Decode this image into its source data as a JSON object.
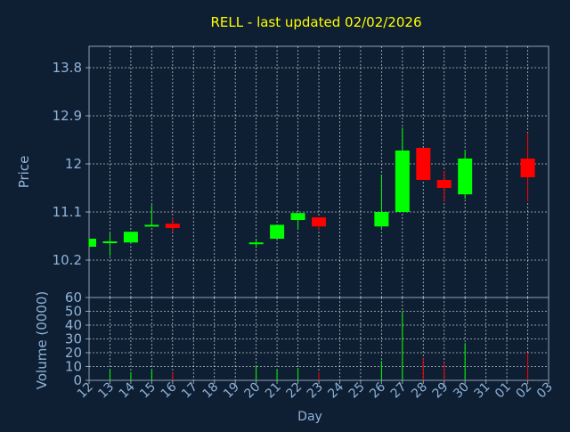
{
  "chart_data": {
    "type": "candlestick",
    "title": "RELL - last updated 02/02/2026",
    "price_panel": {
      "ylabel": "Price",
      "ylim": [
        9.5,
        14.2
      ],
      "yticks": [
        "13.8",
        "12.9",
        "12",
        "11.1",
        "10.2"
      ],
      "ytick_values": [
        13.8,
        12.9,
        12.0,
        11.1,
        10.2
      ],
      "grid": true
    },
    "volume_panel": {
      "ylabel": "Volume (0000)",
      "ylim": [
        0,
        60
      ],
      "yticks": [
        "60",
        "50",
        "40",
        "30",
        "20",
        "10",
        "0"
      ],
      "ytick_values": [
        60,
        50,
        40,
        30,
        20,
        10,
        0
      ],
      "grid": true
    },
    "xlabel": "Day",
    "x_ticks": [
      "12",
      "13",
      "14",
      "15",
      "16",
      "17",
      "18",
      "19",
      "20",
      "21",
      "22",
      "23",
      "24",
      "25",
      "26",
      "27",
      "28",
      "29",
      "30",
      "31",
      "01",
      "02",
      "03"
    ],
    "candles": [
      {
        "day": "12",
        "open": 10.45,
        "close": 10.6,
        "high": 10.6,
        "low": 10.45,
        "volume": 0
      },
      {
        "day": "13",
        "open": 10.52,
        "close": 10.55,
        "high": 10.7,
        "low": 10.28,
        "volume": 8
      },
      {
        "day": "14",
        "open": 10.53,
        "close": 10.73,
        "high": 10.73,
        "low": 10.53,
        "volume": 6
      },
      {
        "day": "15",
        "open": 10.83,
        "close": 10.86,
        "high": 11.23,
        "low": 10.83,
        "volume": 8
      },
      {
        "day": "16",
        "open": 10.88,
        "close": 10.8,
        "high": 11.0,
        "low": 10.72,
        "volume": 6
      },
      {
        "day": "20",
        "open": 10.5,
        "close": 10.53,
        "high": 10.6,
        "low": 10.43,
        "volume": 11
      },
      {
        "day": "21",
        "open": 10.6,
        "close": 10.86,
        "high": 10.86,
        "low": 10.6,
        "volume": 8
      },
      {
        "day": "22",
        "open": 10.95,
        "close": 11.08,
        "high": 11.08,
        "low": 10.78,
        "volume": 9
      },
      {
        "day": "23",
        "open": 11.0,
        "close": 10.83,
        "high": 11.0,
        "low": 10.77,
        "volume": 6
      },
      {
        "day": "26",
        "open": 10.83,
        "close": 11.1,
        "high": 11.8,
        "low": 10.79,
        "volume": 14
      },
      {
        "day": "27",
        "open": 11.1,
        "close": 12.25,
        "high": 12.68,
        "low": 11.1,
        "volume": 50
      },
      {
        "day": "28",
        "open": 12.3,
        "close": 11.7,
        "high": 12.3,
        "low": 11.7,
        "volume": 16
      },
      {
        "day": "29",
        "open": 11.7,
        "close": 11.55,
        "high": 11.87,
        "low": 11.3,
        "volume": 13
      },
      {
        "day": "30",
        "open": 11.43,
        "close": 12.1,
        "high": 12.25,
        "low": 11.35,
        "volume": 27
      },
      {
        "day": "02",
        "open": 12.1,
        "close": 11.75,
        "high": 12.58,
        "low": 11.3,
        "volume": 20
      }
    ],
    "colors": {
      "up": "#00ff00",
      "down": "#ff0000",
      "background": "#0f1f33",
      "title": "#ffff00",
      "axis_text": "#8fb3d9",
      "grid": "#ffffff"
    }
  }
}
